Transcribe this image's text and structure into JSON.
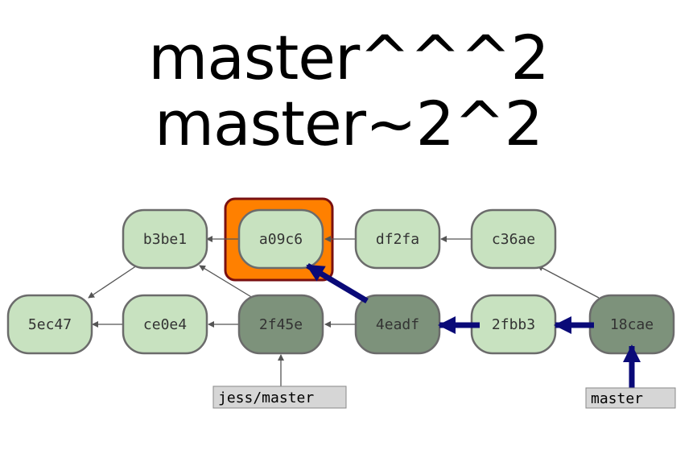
{
  "title": {
    "line1": "master^^^2",
    "line2": "master~2^2"
  },
  "colors": {
    "commit_light": "#c8e2c0",
    "commit_dark": "#7d927b",
    "commit_border": "#6b6b6b",
    "highlight_fill": "#ff8000",
    "highlight_border": "#7a1010",
    "nav_arrow": "#0a0a78",
    "parent_arrow": "#555555",
    "ref_fill": "#d6d6d6"
  },
  "commits": [
    {
      "id": "b3be1",
      "label": "b3be1",
      "style": "light"
    },
    {
      "id": "a09c6",
      "label": "a09c6",
      "style": "light",
      "highlighted": true
    },
    {
      "id": "df2fa",
      "label": "df2fa",
      "style": "light"
    },
    {
      "id": "c36ae",
      "label": "c36ae",
      "style": "light"
    },
    {
      "id": "5ec47",
      "label": "5ec47",
      "style": "light"
    },
    {
      "id": "ce0e4",
      "label": "ce0e4",
      "style": "light"
    },
    {
      "id": "2f45e",
      "label": "2f45e",
      "style": "dark"
    },
    {
      "id": "4eadf",
      "label": "4eadf",
      "style": "dark"
    },
    {
      "id": "2fbb3",
      "label": "2fbb3",
      "style": "light"
    },
    {
      "id": "18cae",
      "label": "18cae",
      "style": "dark"
    }
  ],
  "parent_links": [
    {
      "from": "a09c6",
      "to": "b3be1"
    },
    {
      "from": "df2fa",
      "to": "a09c6"
    },
    {
      "from": "c36ae",
      "to": "df2fa"
    },
    {
      "from": "18cae",
      "to": "c36ae"
    },
    {
      "from": "b3be1",
      "to": "5ec47"
    },
    {
      "from": "ce0e4",
      "to": "5ec47"
    },
    {
      "from": "2f45e",
      "to": "ce0e4"
    },
    {
      "from": "2f45e",
      "to": "b3be1"
    },
    {
      "from": "4eadf",
      "to": "2f45e"
    }
  ],
  "navigation_path": [
    {
      "from": "master",
      "to": "18cae"
    },
    {
      "from": "18cae",
      "to": "2fbb3"
    },
    {
      "from": "2fbb3",
      "to": "4eadf"
    },
    {
      "from": "4eadf",
      "to": "a09c6"
    }
  ],
  "refs": [
    {
      "id": "jess-master",
      "label": "jess/master",
      "points_to": "2f45e"
    },
    {
      "id": "master",
      "label": "master",
      "points_to": "18cae"
    }
  ]
}
